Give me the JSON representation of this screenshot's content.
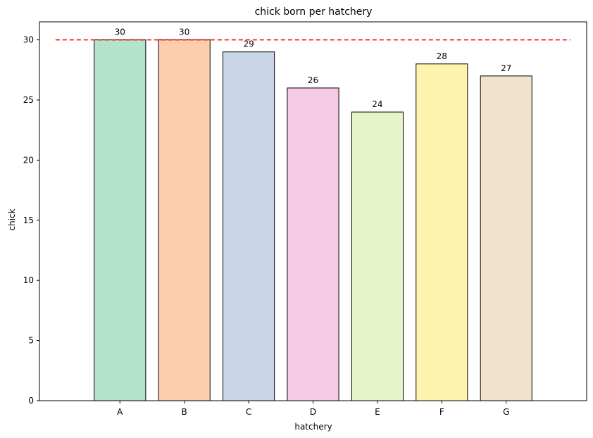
{
  "chart_data": {
    "type": "bar",
    "title": "chick born per hatchery",
    "xlabel": "hatchery",
    "ylabel": "chick",
    "categories": [
      "A",
      "B",
      "C",
      "D",
      "E",
      "F",
      "G"
    ],
    "values": [
      30,
      30,
      29,
      26,
      24,
      28,
      27
    ],
    "ylim": [
      0,
      31.5
    ],
    "yticks": [
      0,
      5,
      10,
      15,
      20,
      25,
      30
    ],
    "bar_colors": [
      "#b3e2cd",
      "#fdcdac",
      "#cbd5e8",
      "#f4cae4",
      "#e6f5c9",
      "#fff2ae",
      "#f1e2cc"
    ],
    "bar_edge_color": "#000000",
    "reference_line": {
      "value": 30,
      "style": "dashed",
      "color": "#ff0000"
    },
    "grid": false,
    "data_labels": true
  }
}
